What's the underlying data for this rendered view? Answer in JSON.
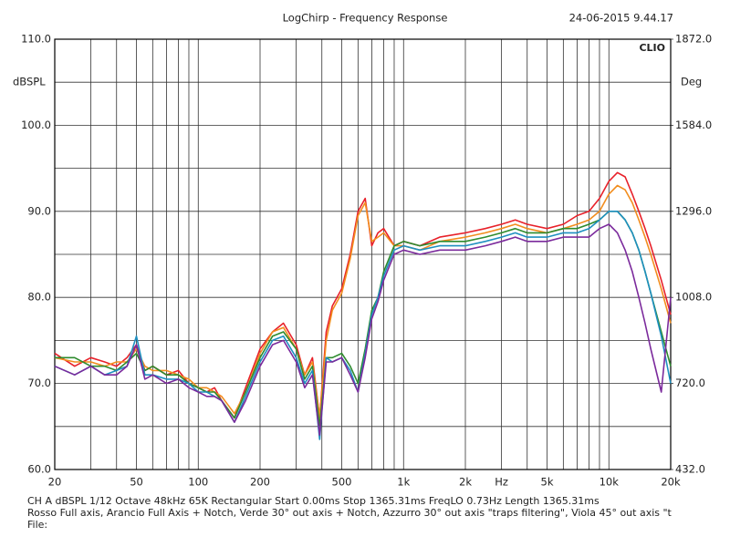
{
  "chart_data": {
    "type": "line",
    "title": "LogChirp - Frequency Response",
    "timestamp": "24-06-2015 9.44.17",
    "brand": "CLIO",
    "y_label": "dBSPL",
    "y2_label": "Deg",
    "footer": [
      "CH A   dBSPL   1/12 Octave   48kHz   65K   Rectangular   Start 0.00ms   Stop 1365.31ms   FreqLO 0.73Hz   Length 1365.31ms",
      "Rosso Full axis, Arancio Full Axis + Notch, Verde 30° out axis + Notch, Azzurro 30° out axis \"traps filtering\", Viola 45° out axis \"t",
      "File:"
    ],
    "log_x": true,
    "grid": true,
    "xlim": [
      20,
      20000
    ],
    "xticks": [
      20,
      50,
      100,
      200,
      500,
      {
        "value": 1000,
        "label": "1k"
      },
      {
        "value": 2000,
        "label": "2k"
      },
      {
        "value": 3000,
        "label": "Hz"
      },
      {
        "value": 5000,
        "label": "5k"
      },
      {
        "value": 10000,
        "label": "10k"
      },
      {
        "value": 20000,
        "label": "20k"
      }
    ],
    "minor_xticks": [
      30,
      40,
      60,
      70,
      80,
      90,
      300,
      400,
      600,
      700,
      800,
      900,
      4000,
      6000,
      7000,
      8000,
      9000
    ],
    "ylim": [
      60,
      110
    ],
    "yticks": [
      {
        "value": 60,
        "label": "60.0"
      },
      {
        "value": 70,
        "label": "70.0"
      },
      {
        "value": 80,
        "label": "80.0"
      },
      {
        "value": 90,
        "label": "90.0"
      },
      {
        "value": 100,
        "label": "100.0"
      },
      {
        "value": 110,
        "label": "110.0"
      }
    ],
    "minor_yticks": [
      65,
      75,
      85,
      95,
      105
    ],
    "y2lim": [
      432,
      1872
    ],
    "y2ticks": [
      {
        "value": 432,
        "label": "432.0"
      },
      {
        "value": 720,
        "label": "720.0"
      },
      {
        "value": 1008,
        "label": "1008.0"
      },
      {
        "value": 1296,
        "label": "1296.0"
      },
      {
        "value": 1584,
        "label": "1584.0"
      },
      {
        "value": 1872,
        "label": "1872.0"
      }
    ],
    "x": [
      20,
      25,
      30,
      35,
      40,
      45,
      50,
      55,
      60,
      70,
      80,
      90,
      100,
      110,
      120,
      130,
      150,
      170,
      200,
      230,
      260,
      300,
      330,
      360,
      390,
      420,
      450,
      500,
      550,
      600,
      650,
      700,
      750,
      800,
      900,
      1000,
      1200,
      1500,
      2000,
      2500,
      3000,
      3500,
      4000,
      5000,
      6000,
      7000,
      8000,
      9000,
      10000,
      11000,
      12000,
      13000,
      14000,
      15000,
      16000,
      18000,
      20000
    ],
    "series": [
      {
        "color": "#e8212a",
        "values": [
          73.5,
          72,
          73,
          72.5,
          72,
          73,
          74.5,
          71.5,
          72,
          71,
          71.5,
          70,
          69.5,
          69,
          69.5,
          68,
          66,
          69.5,
          74,
          76,
          77,
          74.5,
          71,
          73,
          66,
          76,
          79,
          81,
          85,
          90,
          91.5,
          86,
          87.5,
          88,
          86,
          86.5,
          86,
          87,
          87.5,
          88,
          88.5,
          89,
          88.5,
          88,
          88.5,
          89.5,
          90,
          91.5,
          93.5,
          94.5,
          94,
          92,
          90,
          88,
          86,
          82,
          78
        ]
      },
      {
        "color": "#f28d1e",
        "values": [
          73,
          72.5,
          72.5,
          72,
          72.5,
          72.5,
          74,
          72,
          71.5,
          71.5,
          71,
          70.5,
          69.5,
          69.5,
          69,
          68.5,
          66.5,
          69,
          73.5,
          76,
          76.5,
          74,
          71,
          72.5,
          66,
          75,
          78.5,
          80.5,
          84.5,
          89.5,
          91,
          86.5,
          87,
          87.5,
          86,
          86,
          85.5,
          86.5,
          87,
          87.5,
          88,
          88.5,
          88,
          87.5,
          88,
          88.5,
          89,
          90,
          92,
          93,
          92.5,
          91,
          89,
          87,
          85,
          81,
          77
        ]
      },
      {
        "color": "#2e8b2e",
        "values": [
          73,
          73,
          72,
          72,
          71.5,
          72.5,
          73.5,
          71.5,
          72,
          71,
          71,
          70,
          69.5,
          69,
          69,
          68,
          66,
          69,
          73,
          75.5,
          76,
          74,
          70.5,
          72,
          65,
          73,
          73,
          73.5,
          72,
          70,
          74,
          78.5,
          80,
          83,
          86,
          86.5,
          86,
          86.5,
          86.5,
          87,
          87.5,
          88,
          87.5,
          87.5,
          88,
          88,
          88.5,
          89,
          90,
          90,
          89,
          87.5,
          85.5,
          83,
          80.5,
          76,
          72
        ]
      },
      {
        "color": "#1e8fc0",
        "values": [
          72,
          71,
          72,
          71,
          71.5,
          72,
          75.5,
          71,
          71,
          70.5,
          70.5,
          70,
          69,
          69,
          68.5,
          68,
          65.5,
          68.5,
          72.5,
          75,
          75.5,
          73,
          70,
          71.5,
          63.5,
          73,
          72.5,
          73,
          71.5,
          69,
          73.5,
          78,
          80,
          82.5,
          85.5,
          86,
          85.5,
          86,
          86,
          86.5,
          87,
          87.5,
          87,
          87,
          87.5,
          87.5,
          88,
          89,
          90,
          90,
          89,
          87.5,
          85.5,
          83,
          80.5,
          75.5,
          70
        ]
      },
      {
        "color": "#7b2a9c",
        "values": [
          72,
          71,
          72,
          71,
          71,
          72,
          74.5,
          70.5,
          71,
          70,
          70.5,
          69.5,
          69,
          68.5,
          68.5,
          68,
          65.5,
          68,
          72,
          74.5,
          75,
          72.5,
          69.5,
          71,
          64,
          72.5,
          72.5,
          73,
          71,
          69,
          73,
          77.5,
          79.5,
          82,
          85,
          85.5,
          85,
          85.5,
          85.5,
          86,
          86.5,
          87,
          86.5,
          86.5,
          87,
          87,
          87,
          88,
          88.5,
          87.5,
          85.5,
          83,
          80,
          77,
          74,
          69,
          80
        ]
      }
    ]
  }
}
